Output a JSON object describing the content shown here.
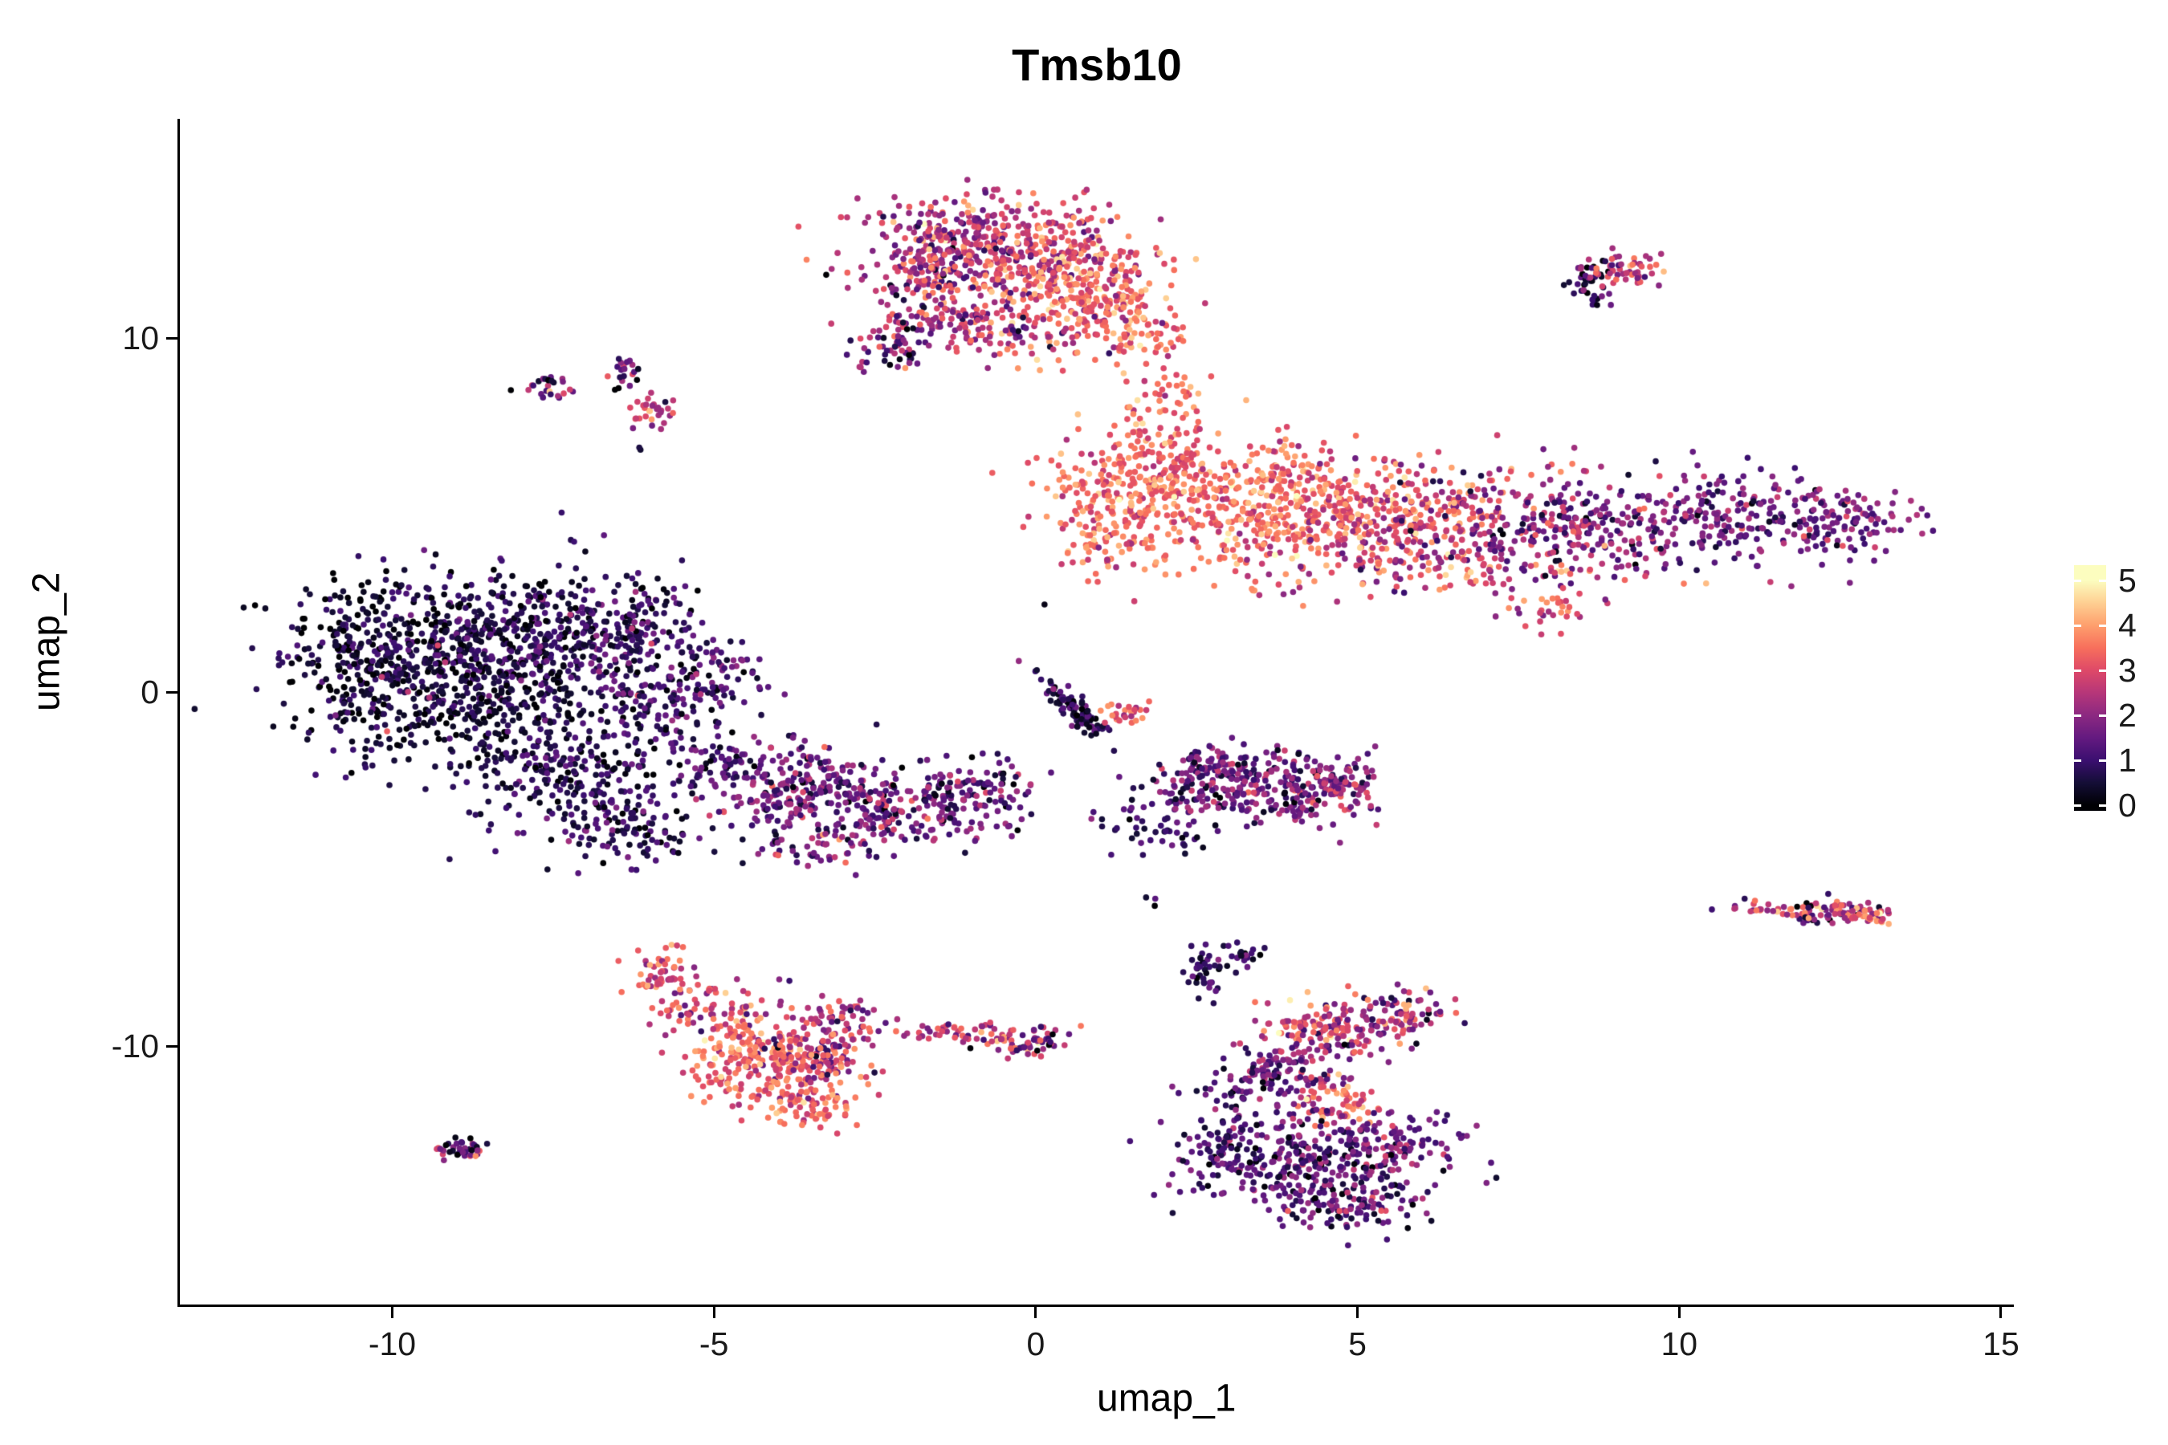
{
  "title": "Tmsb10",
  "chart_data": {
    "type": "scatter",
    "title": "Tmsb10",
    "xlabel": "umap_1",
    "ylabel": "umap_2",
    "xlim": [
      -13.3,
      15.2
    ],
    "ylim": [
      -17.3,
      16.2
    ],
    "xticks": [
      -10,
      -5,
      0,
      5,
      10,
      15
    ],
    "yticks": [
      -10,
      0,
      10
    ],
    "grid": false,
    "legend": {
      "position": "right",
      "ticks": [
        5,
        4,
        3,
        2,
        1,
        0
      ],
      "min": 0,
      "max": 5
    },
    "color_scale": {
      "name": "magma",
      "domain": [
        0,
        5
      ],
      "stops": [
        [
          0.0,
          "#000004"
        ],
        [
          0.5,
          "#140E36"
        ],
        [
          1.0,
          "#3B0F70"
        ],
        [
          1.5,
          "#641A80"
        ],
        [
          2.0,
          "#8C2981"
        ],
        [
          2.5,
          "#B63679"
        ],
        [
          3.0,
          "#DE4968"
        ],
        [
          3.5,
          "#F76F5C"
        ],
        [
          4.0,
          "#FE9F6D"
        ],
        [
          4.5,
          "#FECF92"
        ],
        [
          5.0,
          "#FCFDBF"
        ]
      ]
    },
    "point_radius": 3.8,
    "seed": 42,
    "blob_format": [
      "x_center",
      "y_center",
      "sd_x",
      "sd_y",
      "n_points",
      "expr_mean",
      "expr_sd",
      "rotation_deg"
    ],
    "clusters": [
      {
        "name": "top-center",
        "blobs": [
          [
            -0.9,
            12.7,
            0.85,
            0.75,
            320,
            2.6,
            0.9,
            0
          ],
          [
            0.3,
            11.9,
            0.7,
            0.8,
            240,
            3.0,
            0.8,
            0
          ],
          [
            1.0,
            11.0,
            0.55,
            0.7,
            160,
            3.4,
            0.6,
            0
          ],
          [
            -1.6,
            11.9,
            0.5,
            0.7,
            120,
            2.3,
            0.9,
            0
          ],
          [
            -0.9,
            10.3,
            0.8,
            0.5,
            140,
            2.5,
            0.9,
            0
          ],
          [
            -2.2,
            9.7,
            0.35,
            0.35,
            50,
            1.6,
            1.0,
            0
          ],
          [
            1.8,
            10.2,
            0.3,
            0.5,
            40,
            3.4,
            0.6,
            0
          ],
          [
            2.4,
            8.2,
            0.15,
            0.45,
            16,
            3.6,
            0.5,
            0
          ],
          [
            2.0,
            8.7,
            0.12,
            0.3,
            8,
            3.3,
            0.5,
            0
          ]
        ]
      },
      {
        "name": "top-right-small",
        "blobs": [
          [
            8.65,
            11.5,
            0.22,
            0.28,
            35,
            0.7,
            0.6,
            0
          ],
          [
            9.1,
            11.9,
            0.3,
            0.25,
            55,
            2.7,
            0.8,
            0
          ]
        ]
      },
      {
        "name": "right-large",
        "blobs": [
          [
            1.7,
            5.9,
            0.8,
            0.9,
            260,
            3.4,
            0.5,
            0
          ],
          [
            3.6,
            5.3,
            1.2,
            1.0,
            480,
            3.4,
            0.6,
            0
          ],
          [
            5.8,
            4.9,
            1.0,
            0.85,
            280,
            2.9,
            0.8,
            0
          ],
          [
            8.0,
            4.7,
            1.1,
            0.75,
            260,
            1.9,
            0.8,
            0
          ],
          [
            10.6,
            5.0,
            1.1,
            0.65,
            240,
            1.6,
            0.6,
            0
          ],
          [
            12.6,
            4.7,
            0.6,
            0.5,
            90,
            1.8,
            0.7,
            0
          ],
          [
            6.8,
            3.3,
            1.6,
            0.4,
            90,
            2.6,
            1.0,
            0
          ],
          [
            7.9,
            2.3,
            0.5,
            0.3,
            28,
            3.0,
            0.7,
            0
          ],
          [
            1.6,
            7.6,
            0.25,
            0.6,
            24,
            3.3,
            0.6,
            0
          ],
          [
            1.0,
            4.4,
            0.35,
            0.6,
            60,
            3.2,
            0.7,
            0
          ]
        ]
      },
      {
        "name": "left-large-dark",
        "blobs": [
          [
            -9.4,
            1.6,
            1.15,
            1.0,
            420,
            0.55,
            0.5,
            0
          ],
          [
            -7.6,
            1.3,
            1.0,
            0.95,
            320,
            0.75,
            0.55,
            0
          ],
          [
            -8.9,
            -0.6,
            1.1,
            0.8,
            280,
            0.45,
            0.4,
            0
          ],
          [
            -10.4,
            0.3,
            0.5,
            0.9,
            120,
            0.5,
            0.45,
            0
          ],
          [
            -7.3,
            -2.3,
            0.85,
            0.9,
            220,
            0.7,
            0.5,
            0
          ],
          [
            -6.3,
            -3.9,
            0.55,
            0.55,
            110,
            0.85,
            0.55,
            0
          ],
          [
            -5.6,
            -0.2,
            0.55,
            1.0,
            150,
            1.0,
            0.6,
            0
          ],
          [
            -6.4,
            1.8,
            0.6,
            0.8,
            130,
            0.9,
            0.6,
            0
          ],
          [
            -5.0,
            0.6,
            0.35,
            0.5,
            50,
            1.2,
            0.7,
            0
          ],
          [
            -9.2,
            0.1,
            0.8,
            0.8,
            6,
            3.0,
            0.5,
            0
          ]
        ]
      },
      {
        "name": "center-left-purple",
        "blobs": [
          [
            -3.7,
            -2.7,
            0.75,
            0.65,
            220,
            1.6,
            0.7,
            0
          ],
          [
            -2.2,
            -3.3,
            0.8,
            0.6,
            200,
            1.5,
            0.7,
            0
          ],
          [
            -0.9,
            -2.8,
            0.5,
            0.45,
            80,
            1.3,
            0.7,
            0
          ],
          [
            -4.7,
            -2.0,
            0.4,
            0.4,
            50,
            1.1,
            0.6,
            0
          ],
          [
            -3.2,
            -4.4,
            0.5,
            0.3,
            50,
            1.7,
            0.8,
            0
          ]
        ]
      },
      {
        "name": "origin-streak",
        "blobs": [
          [
            0.55,
            -0.45,
            0.55,
            0.13,
            90,
            0.8,
            0.5,
            -60
          ],
          [
            1.35,
            -0.55,
            0.25,
            0.2,
            26,
            3.4,
            0.5,
            0
          ]
        ]
      },
      {
        "name": "center-right-purple",
        "blobs": [
          [
            2.6,
            -2.5,
            0.45,
            0.45,
            110,
            1.5,
            0.7,
            0
          ],
          [
            3.9,
            -2.8,
            0.75,
            0.5,
            190,
            1.7,
            0.7,
            0
          ],
          [
            4.7,
            -2.6,
            0.3,
            0.35,
            60,
            2.1,
            0.7,
            0
          ],
          [
            1.9,
            -3.9,
            0.45,
            0.3,
            45,
            0.9,
            0.5,
            -30
          ],
          [
            3.1,
            -1.9,
            0.4,
            0.25,
            40,
            1.4,
            0.7,
            0
          ]
        ]
      },
      {
        "name": "bottom-left-orange",
        "blobs": [
          [
            -5.75,
            -8.0,
            0.25,
            0.45,
            55,
            3.1,
            0.6,
            0
          ],
          [
            -5.0,
            -9.1,
            0.5,
            0.5,
            90,
            2.9,
            0.8,
            0
          ],
          [
            -4.3,
            -10.4,
            0.6,
            0.6,
            200,
            3.4,
            0.6,
            0
          ],
          [
            -3.4,
            -10.2,
            0.4,
            0.7,
            140,
            2.5,
            0.9,
            0
          ],
          [
            -3.5,
            -11.7,
            0.4,
            0.35,
            70,
            3.5,
            0.5,
            0
          ],
          [
            -2.9,
            -9.3,
            0.3,
            0.4,
            40,
            2.2,
            0.9,
            0
          ]
        ]
      },
      {
        "name": "bottom-center-streak",
        "blobs": [
          [
            -1.2,
            -9.6,
            0.6,
            0.12,
            45,
            2.8,
            0.9,
            0
          ],
          [
            -0.1,
            -9.85,
            0.35,
            0.25,
            60,
            2.2,
            1.1,
            0
          ]
        ]
      },
      {
        "name": "bottom-right",
        "blobs": [
          [
            2.65,
            -7.9,
            0.18,
            0.4,
            40,
            0.7,
            0.5,
            0
          ],
          [
            3.25,
            -7.4,
            0.15,
            0.2,
            18,
            0.9,
            0.6,
            0
          ],
          [
            4.6,
            -9.5,
            0.55,
            0.45,
            130,
            2.7,
            0.9,
            0
          ],
          [
            5.6,
            -9.1,
            0.45,
            0.35,
            80,
            2.1,
            1.0,
            0
          ],
          [
            4.0,
            -10.5,
            0.5,
            0.45,
            90,
            1.8,
            0.8,
            0
          ],
          [
            3.3,
            -11.3,
            0.45,
            0.55,
            70,
            1.2,
            0.6,
            0
          ],
          [
            4.8,
            -11.6,
            0.35,
            0.35,
            60,
            3.2,
            0.6,
            0
          ],
          [
            4.4,
            -13.4,
            1.0,
            0.75,
            380,
            1.3,
            0.7,
            0
          ],
          [
            5.6,
            -12.7,
            0.4,
            0.4,
            60,
            1.7,
            0.8,
            0
          ],
          [
            2.9,
            -12.9,
            0.35,
            0.45,
            50,
            0.9,
            0.5,
            0
          ],
          [
            5.0,
            -14.6,
            0.5,
            0.3,
            50,
            1.4,
            0.7,
            0
          ]
        ]
      },
      {
        "name": "far-right-streak",
        "blobs": [
          [
            11.2,
            -6.1,
            0.3,
            0.12,
            18,
            2.6,
            0.8,
            0
          ],
          [
            12.35,
            -6.2,
            0.4,
            0.15,
            80,
            2.4,
            1.3,
            0
          ],
          [
            12.95,
            -6.3,
            0.2,
            0.12,
            30,
            3.1,
            0.7,
            0
          ]
        ]
      },
      {
        "name": "tiny-bottom-left",
        "blobs": [
          [
            -8.9,
            -12.9,
            0.2,
            0.13,
            40,
            1.4,
            1.2,
            0
          ]
        ]
      },
      {
        "name": "small-top-left",
        "blobs": [
          [
            -7.55,
            8.6,
            0.22,
            0.18,
            24,
            1.6,
            1.1,
            0
          ],
          [
            -6.35,
            9.1,
            0.15,
            0.25,
            20,
            1.1,
            1.0,
            0
          ],
          [
            -5.9,
            7.9,
            0.22,
            0.25,
            30,
            2.8,
            0.7,
            0
          ]
        ]
      },
      {
        "name": "outliers",
        "blobs": [
          [
            -6.15,
            6.9,
            0.05,
            0.05,
            2,
            0.3,
            0.2,
            0
          ],
          [
            1.8,
            -5.8,
            0.1,
            0.08,
            3,
            0.5,
            0.4,
            0
          ],
          [
            0.2,
            2.4,
            0.05,
            0.05,
            1,
            0.4,
            0.1,
            0
          ],
          [
            3.3,
            -8.7,
            0.05,
            0.05,
            1,
            3.5,
            0.2,
            0
          ]
        ]
      }
    ]
  }
}
